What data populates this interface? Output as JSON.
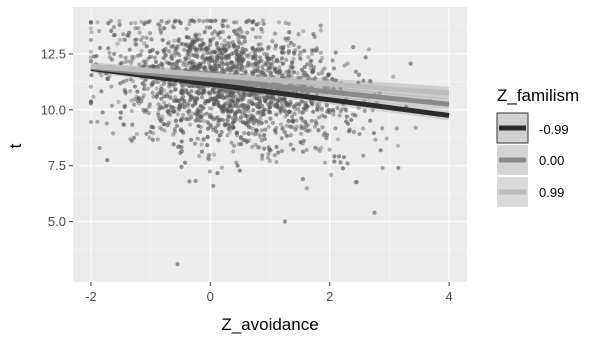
{
  "chart_data": {
    "type": "scatter",
    "xlabel": "Z_avoidance",
    "ylabel": "t",
    "xlim": [
      -2.3,
      4.3
    ],
    "ylim": [
      2.3,
      14.6
    ],
    "x_ticks": [
      -2,
      0,
      2,
      4
    ],
    "x_tick_labels": [
      "-2",
      "0",
      "2",
      "4"
    ],
    "y_ticks": [
      5.0,
      7.5,
      10.0,
      12.5
    ],
    "y_tick_labels": [
      "5.0",
      "7.5",
      "10.0",
      "12.5"
    ],
    "grid": true,
    "background": "#ebebeb",
    "point_color": "#595959",
    "point_count_approx": 1900,
    "y_ceiling": 14,
    "outliers": [
      {
        "x": -0.55,
        "y": 3.1
      },
      {
        "x": 1.25,
        "y": 5.0
      },
      {
        "x": 2.75,
        "y": 5.4
      },
      {
        "x": 0.05,
        "y": 6.6
      },
      {
        "x": -0.35,
        "y": 6.8
      },
      {
        "x": 1.55,
        "y": 6.9
      },
      {
        "x": 3.15,
        "y": 7.4
      },
      {
        "x": 2.3,
        "y": 7.6
      }
    ],
    "legend": {
      "title": "Z_familism",
      "position": "right",
      "entries": [
        {
          "label": "-0.99",
          "line_color": "#2b2b2b",
          "band_color": "#d0d0d0"
        },
        {
          "label": "0.00",
          "line_color": "#8a8a8a",
          "band_color": "#d4d4d4"
        },
        {
          "label": "0.99",
          "line_color": "#bdbdbd",
          "band_color": "#d9d9d9"
        }
      ]
    },
    "series": [
      {
        "name": "-0.99",
        "x": [
          -2,
          4
        ],
        "y": [
          11.85,
          9.75
        ],
        "band_halfwidth": [
          0.17,
          0.22
        ],
        "color": "#2b2b2b"
      },
      {
        "name": "0.00",
        "x": [
          -2,
          4
        ],
        "y": [
          11.9,
          10.25
        ],
        "band_halfwidth": [
          0.15,
          0.25
        ],
        "color": "#8a8a8a"
      },
      {
        "name": "0.99",
        "x": [
          -2,
          4
        ],
        "y": [
          11.95,
          10.75
        ],
        "band_halfwidth": [
          0.17,
          0.28
        ],
        "color": "#bdbdbd"
      }
    ]
  }
}
